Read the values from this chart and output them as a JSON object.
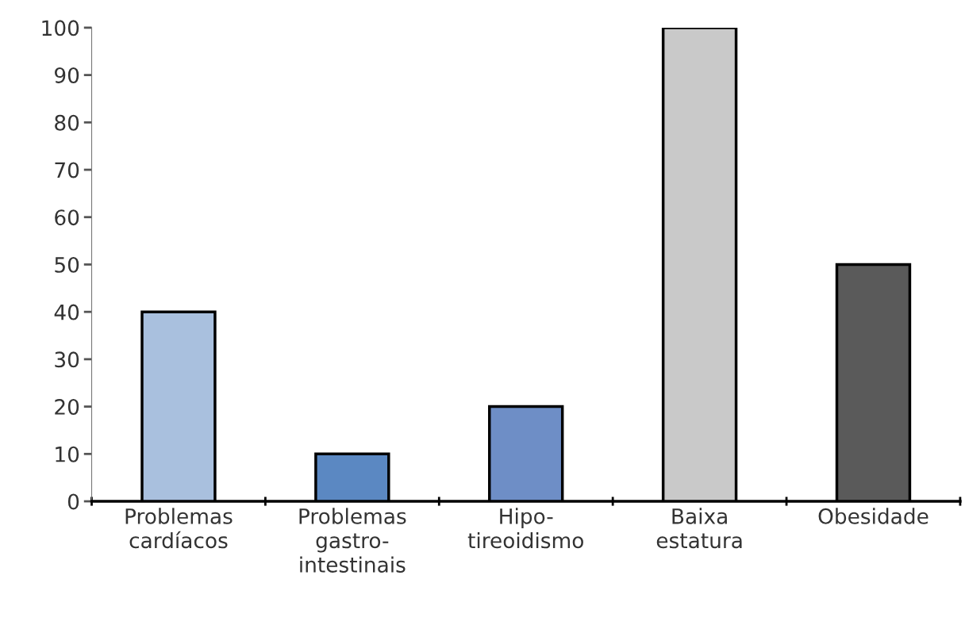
{
  "chart_data": {
    "type": "bar",
    "categories": [
      "Problemas\ncardíacos",
      "Problemas\ngastro-\nintestinais",
      "Hipo-\ntireoidismo",
      "Baixa\nestatura",
      "Obesidade"
    ],
    "values": [
      40,
      10,
      20,
      100,
      50
    ],
    "colors": [
      "#a9c0de",
      "#5b88c2",
      "#6e8ec6",
      "#c9c9c9",
      "#5a5a5a"
    ],
    "ylim": [
      0,
      100
    ],
    "yticks": [
      0,
      10,
      20,
      30,
      40,
      50,
      60,
      70,
      80,
      90,
      100
    ],
    "grid": false,
    "legend": false
  }
}
